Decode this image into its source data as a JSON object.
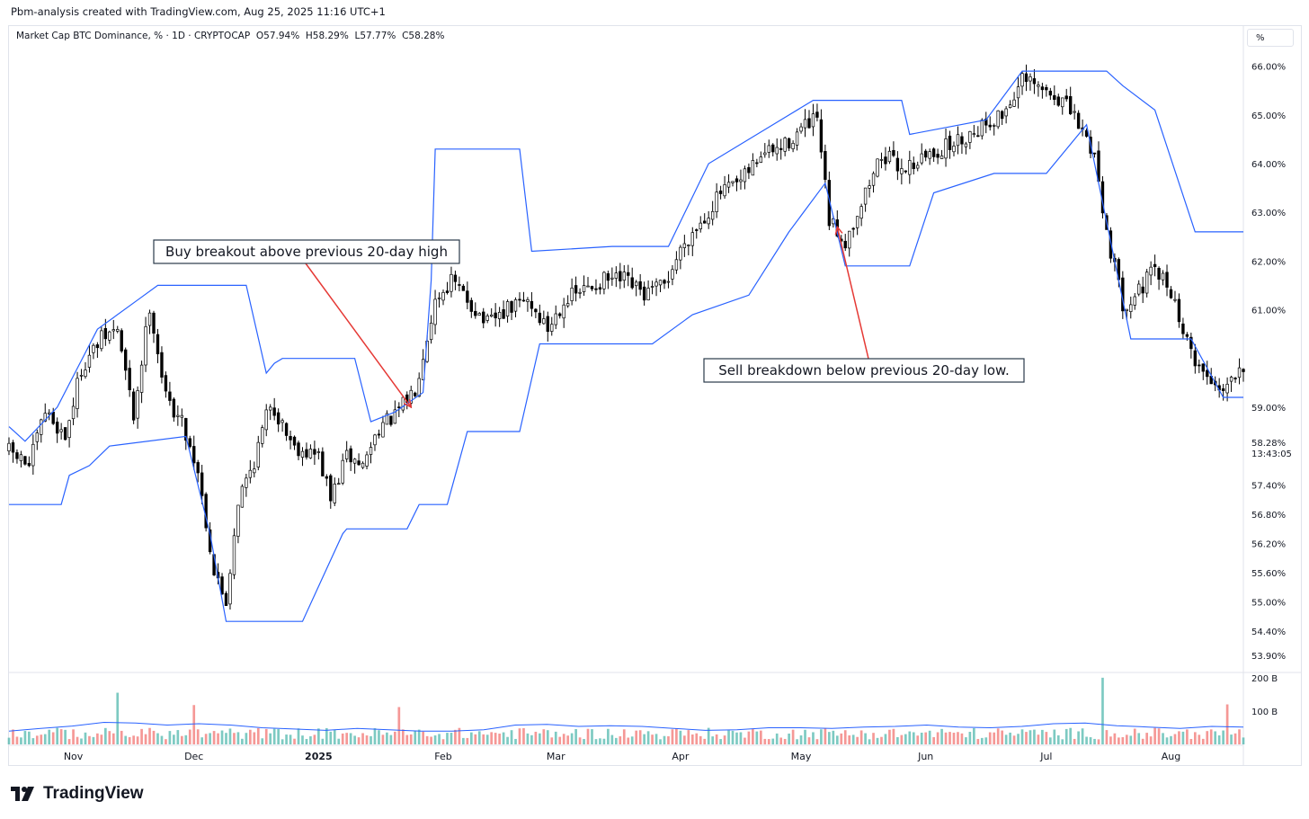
{
  "header": {
    "credit": "Pbm-analysis created with TradingView.com, Aug 25, 2025 11:16 UTC+1"
  },
  "legend": {
    "symbol": "Market Cap BTC Dominance, % · 1D · CRYPTOCAP",
    "open": "O57.94%",
    "high": "H58.29%",
    "low": "L57.77%",
    "close": "C58.28%"
  },
  "unit_label": "%",
  "brand": {
    "name": "TradingView"
  },
  "colors": {
    "up": "#26a69a",
    "down": "#ef5350",
    "channel": "#2962ff",
    "arrow": "#e53935",
    "candle": "#000000"
  },
  "chart_data": {
    "type": "candlestick",
    "interval": "1D",
    "ylim": [
      53.7,
      66.4
    ],
    "y_ticks": [
      "66.00%",
      "65.00%",
      "64.00%",
      "63.00%",
      "62.00%",
      "61.00%",
      "59.00%",
      "57.40%",
      "56.80%",
      "56.20%",
      "55.60%",
      "55.00%",
      "54.40%",
      "53.90%"
    ],
    "last_price_label": "58.28%",
    "countdown_label": "13:43:05",
    "x_ticks": [
      "Nov",
      "Dec",
      "2025",
      "Feb",
      "Mar",
      "Apr",
      "May",
      "Jun",
      "Jul",
      "Aug"
    ],
    "close_path": [
      {
        "d": "2024-10-16",
        "v": 58.1
      },
      {
        "d": "2024-10-21",
        "v": 57.8
      },
      {
        "d": "2024-10-25",
        "v": 58.9
      },
      {
        "d": "2024-10-30",
        "v": 58.4
      },
      {
        "d": "2024-11-03",
        "v": 59.8
      },
      {
        "d": "2024-11-08",
        "v": 60.4
      },
      {
        "d": "2024-11-12",
        "v": 60.6
      },
      {
        "d": "2024-11-16",
        "v": 58.8
      },
      {
        "d": "2024-11-20",
        "v": 61.1
      },
      {
        "d": "2024-11-24",
        "v": 59.2
      },
      {
        "d": "2024-11-28",
        "v": 58.7
      },
      {
        "d": "2024-12-02",
        "v": 57.7
      },
      {
        "d": "2024-12-06",
        "v": 55.6
      },
      {
        "d": "2024-12-09",
        "v": 55.0
      },
      {
        "d": "2024-12-12",
        "v": 57.1
      },
      {
        "d": "2024-12-16",
        "v": 57.9
      },
      {
        "d": "2024-12-20",
        "v": 59.1
      },
      {
        "d": "2024-12-26",
        "v": 58.2
      },
      {
        "d": "2025-01-01",
        "v": 58.0
      },
      {
        "d": "2025-01-04",
        "v": 57.1
      },
      {
        "d": "2025-01-08",
        "v": 58.0
      },
      {
        "d": "2025-01-12",
        "v": 57.8
      },
      {
        "d": "2025-01-16",
        "v": 58.6
      },
      {
        "d": "2025-01-20",
        "v": 58.8
      },
      {
        "d": "2025-01-25",
        "v": 59.4
      },
      {
        "d": "2025-01-30",
        "v": 61.2
      },
      {
        "d": "2025-02-03",
        "v": 61.6
      },
      {
        "d": "2025-02-07",
        "v": 61.2
      },
      {
        "d": "2025-02-12",
        "v": 60.7
      },
      {
        "d": "2025-02-17",
        "v": 61.0
      },
      {
        "d": "2025-02-22",
        "v": 61.2
      },
      {
        "d": "2025-02-27",
        "v": 60.6
      },
      {
        "d": "2025-03-03",
        "v": 61.2
      },
      {
        "d": "2025-03-08",
        "v": 61.4
      },
      {
        "d": "2025-03-13",
        "v": 61.6
      },
      {
        "d": "2025-03-18",
        "v": 61.6
      },
      {
        "d": "2025-03-23",
        "v": 61.3
      },
      {
        "d": "2025-03-28",
        "v": 61.5
      },
      {
        "d": "2025-04-02",
        "v": 62.4
      },
      {
        "d": "2025-04-07",
        "v": 62.9
      },
      {
        "d": "2025-04-11",
        "v": 63.4
      },
      {
        "d": "2025-04-16",
        "v": 63.6
      },
      {
        "d": "2025-04-21",
        "v": 64.2
      },
      {
        "d": "2025-04-26",
        "v": 64.3
      },
      {
        "d": "2025-05-01",
        "v": 64.7
      },
      {
        "d": "2025-05-05",
        "v": 64.9
      },
      {
        "d": "2025-05-08",
        "v": 62.8
      },
      {
        "d": "2025-05-12",
        "v": 62.4
      },
      {
        "d": "2025-05-16",
        "v": 63.2
      },
      {
        "d": "2025-05-21",
        "v": 64.2
      },
      {
        "d": "2025-05-26",
        "v": 63.9
      },
      {
        "d": "2025-05-31",
        "v": 64.1
      },
      {
        "d": "2025-06-05",
        "v": 64.3
      },
      {
        "d": "2025-06-10",
        "v": 64.5
      },
      {
        "d": "2025-06-15",
        "v": 64.8
      },
      {
        "d": "2025-06-20",
        "v": 65.0
      },
      {
        "d": "2025-06-25",
        "v": 65.7
      },
      {
        "d": "2025-06-30",
        "v": 65.5
      },
      {
        "d": "2025-07-05",
        "v": 65.3
      },
      {
        "d": "2025-07-09",
        "v": 64.8
      },
      {
        "d": "2025-07-13",
        "v": 64.2
      },
      {
        "d": "2025-07-16",
        "v": 62.6
      },
      {
        "d": "2025-07-20",
        "v": 61.1
      },
      {
        "d": "2025-07-24",
        "v": 61.4
      },
      {
        "d": "2025-07-28",
        "v": 61.8
      },
      {
        "d": "2025-08-01",
        "v": 61.4
      },
      {
        "d": "2025-08-05",
        "v": 60.3
      },
      {
        "d": "2025-08-09",
        "v": 59.7
      },
      {
        "d": "2025-08-13",
        "v": 59.4
      },
      {
        "d": "2025-08-16",
        "v": 59.6
      },
      {
        "d": "2025-08-18",
        "v": 59.9
      }
    ],
    "channel_upper": [
      {
        "d": "2024-10-16",
        "v": 58.6
      },
      {
        "d": "2024-10-20",
        "v": 58.3
      },
      {
        "d": "2024-10-28",
        "v": 59.0
      },
      {
        "d": "2024-11-07",
        "v": 60.6
      },
      {
        "d": "2024-11-17",
        "v": 61.2
      },
      {
        "d": "2024-11-22",
        "v": 61.5
      },
      {
        "d": "2024-12-14",
        "v": 61.5
      },
      {
        "d": "2024-12-19",
        "v": 59.7
      },
      {
        "d": "2024-12-21",
        "v": 59.9
      },
      {
        "d": "2024-12-23",
        "v": 60.0
      },
      {
        "d": "2025-01-10",
        "v": 60.0
      },
      {
        "d": "2025-01-14",
        "v": 58.7
      },
      {
        "d": "2025-01-20",
        "v": 58.9
      },
      {
        "d": "2025-01-27",
        "v": 59.3
      },
      {
        "d": "2025-01-29",
        "v": 61.6
      },
      {
        "d": "2025-01-30",
        "v": 64.3
      },
      {
        "d": "2025-02-20",
        "v": 64.3
      },
      {
        "d": "2025-02-23",
        "v": 62.2
      },
      {
        "d": "2025-03-15",
        "v": 62.3
      },
      {
        "d": "2025-03-29",
        "v": 62.3
      },
      {
        "d": "2025-04-08",
        "v": 64.0
      },
      {
        "d": "2025-05-04",
        "v": 65.3
      },
      {
        "d": "2025-05-26",
        "v": 65.3
      },
      {
        "d": "2025-05-28",
        "v": 64.6
      },
      {
        "d": "2025-06-16",
        "v": 64.9
      },
      {
        "d": "2025-06-25",
        "v": 65.9
      },
      {
        "d": "2025-07-16",
        "v": 65.9
      },
      {
        "d": "2025-07-20",
        "v": 65.6
      },
      {
        "d": "2025-07-28",
        "v": 65.1
      },
      {
        "d": "2025-08-07",
        "v": 62.6
      },
      {
        "d": "2025-08-19",
        "v": 62.6
      }
    ],
    "channel_lower": [
      {
        "d": "2024-10-16",
        "v": 57.0
      },
      {
        "d": "2024-10-29",
        "v": 57.0
      },
      {
        "d": "2024-10-31",
        "v": 57.6
      },
      {
        "d": "2024-11-05",
        "v": 57.8
      },
      {
        "d": "2024-11-10",
        "v": 58.2
      },
      {
        "d": "2024-11-29",
        "v": 58.4
      },
      {
        "d": "2024-12-05",
        "v": 56.4
      },
      {
        "d": "2024-12-09",
        "v": 54.6
      },
      {
        "d": "2024-12-28",
        "v": 54.6
      },
      {
        "d": "2025-01-02",
        "v": 55.5
      },
      {
        "d": "2025-01-07",
        "v": 56.4
      },
      {
        "d": "2025-01-08",
        "v": 56.5
      },
      {
        "d": "2025-01-23",
        "v": 56.5
      },
      {
        "d": "2025-01-26",
        "v": 57.0
      },
      {
        "d": "2025-02-02",
        "v": 57.0
      },
      {
        "d": "2025-02-07",
        "v": 58.5
      },
      {
        "d": "2025-02-20",
        "v": 58.5
      },
      {
        "d": "2025-02-25",
        "v": 60.3
      },
      {
        "d": "2025-03-25",
        "v": 60.3
      },
      {
        "d": "2025-04-04",
        "v": 60.9
      },
      {
        "d": "2025-04-18",
        "v": 61.3
      },
      {
        "d": "2025-04-28",
        "v": 62.6
      },
      {
        "d": "2025-05-07",
        "v": 63.6
      },
      {
        "d": "2025-05-12",
        "v": 61.9
      },
      {
        "d": "2025-05-28",
        "v": 61.9
      },
      {
        "d": "2025-06-03",
        "v": 63.4
      },
      {
        "d": "2025-06-18",
        "v": 63.8
      },
      {
        "d": "2025-07-01",
        "v": 63.8
      },
      {
        "d": "2025-07-11",
        "v": 64.8
      },
      {
        "d": "2025-07-16",
        "v": 62.8
      },
      {
        "d": "2025-07-22",
        "v": 60.4
      },
      {
        "d": "2025-08-06",
        "v": 60.4
      },
      {
        "d": "2025-08-14",
        "v": 59.2
      },
      {
        "d": "2025-08-19",
        "v": 59.2
      }
    ],
    "volume": {
      "y_ticks": [
        "200 B",
        "100 B"
      ],
      "ma_level_billion": [
        40,
        48,
        55,
        66,
        64,
        58,
        62,
        58,
        50,
        46,
        42,
        48,
        44,
        40,
        40,
        44,
        58,
        60,
        54,
        56,
        54,
        48,
        42,
        44,
        50,
        50,
        48,
        52,
        54,
        58,
        52,
        50,
        54,
        62,
        64,
        56,
        52,
        48,
        54,
        52
      ],
      "spikes": [
        {
          "d": "2024-11-12",
          "v": 155
        },
        {
          "d": "2024-12-01",
          "v": 118
        },
        {
          "d": "2025-01-21",
          "v": 112
        },
        {
          "d": "2025-07-15",
          "v": 200
        },
        {
          "d": "2025-08-15",
          "v": 120
        }
      ]
    }
  },
  "annotations": [
    {
      "text": "Buy breakout above previous 20-day high",
      "target_date": "2025-01-24",
      "target_value": 59.0
    },
    {
      "text": "Sell breakdown below previous 20-day low.",
      "target_date": "2025-05-10",
      "target_value": 62.7
    }
  ]
}
